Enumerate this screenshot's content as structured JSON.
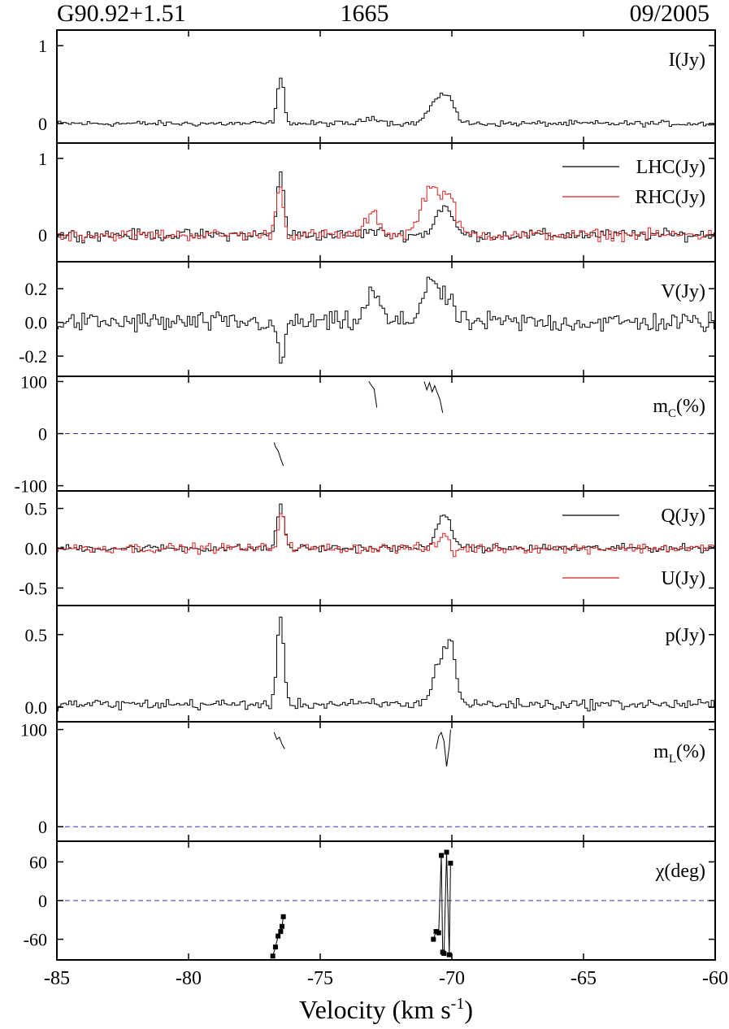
{
  "header": {
    "source": "G90.92+1.51",
    "frequency": "1665",
    "date": "09/2005"
  },
  "chart_data": {
    "type": "line",
    "step": true,
    "xlabel": "Velocity (km s",
    "xlabel_sup": "-1",
    "xlabel_close": ")",
    "xlim": [
      -85,
      -60
    ],
    "xticks": [
      -85,
      -80,
      -75,
      -70,
      -65,
      -60
    ],
    "x_tick_labels": [
      "-85",
      "-80",
      "-75",
      "-70",
      "-65",
      "-60"
    ],
    "channel_width": 0.1,
    "colors": {
      "black": "#000000",
      "red": "#d62020",
      "zero_line": "#3030b0"
    },
    "panels": [
      {
        "id": "I",
        "ylim": [
          -0.25,
          1.2
        ],
        "yticks": [
          0,
          1
        ],
        "y_tick_labels": [
          "0",
          "1"
        ],
        "label": "I(Jy)",
        "series": [
          {
            "color": "#000000",
            "noise": 0.03,
            "features": [
              {
                "v": -76.5,
                "amp": 0.58,
                "w": 0.13
              },
              {
                "v": -73.0,
                "amp": 0.08,
                "w": 0.3
              },
              {
                "v": -70.6,
                "amp": 0.28,
                "w": 0.3
              },
              {
                "v": -70.1,
                "amp": 0.3,
                "w": 0.22
              }
            ]
          }
        ]
      },
      {
        "id": "LHC_RHC",
        "ylim": [
          -0.35,
          1.2
        ],
        "yticks": [
          0,
          1
        ],
        "y_tick_labels": [
          "0",
          "1"
        ],
        "legend": [
          "LHC(Jy)",
          "RHC(Jy)"
        ],
        "series": [
          {
            "name": "LHC(Jy)",
            "color": "#000000",
            "noise": 0.06,
            "features": [
              {
                "v": -76.5,
                "amp": 0.8,
                "w": 0.13
              },
              {
                "v": -73.0,
                "amp": 0.05,
                "w": 0.3
              },
              {
                "v": -70.3,
                "amp": 0.38,
                "w": 0.3
              }
            ]
          },
          {
            "name": "RHC(Jy)",
            "color": "#d62020",
            "noise": 0.06,
            "features": [
              {
                "v": -76.55,
                "amp": 0.65,
                "w": 0.13
              },
              {
                "v": -73.0,
                "amp": 0.28,
                "w": 0.25
              },
              {
                "v": -70.8,
                "amp": 0.62,
                "w": 0.35
              },
              {
                "v": -70.1,
                "amp": 0.45,
                "w": 0.25
              }
            ]
          }
        ]
      },
      {
        "id": "V",
        "ylim": [
          -0.32,
          0.36
        ],
        "yticks": [
          -0.2,
          0.0,
          0.2
        ],
        "y_tick_labels": [
          "-0.2",
          "0.0",
          "0.2"
        ],
        "label": "V(Jy)",
        "series": [
          {
            "color": "#000000",
            "noise": 0.05,
            "features": [
              {
                "v": -76.5,
                "amp": -0.25,
                "w": 0.13
              },
              {
                "v": -73.0,
                "amp": 0.18,
                "w": 0.25
              },
              {
                "v": -70.8,
                "amp": 0.27,
                "w": 0.3
              },
              {
                "v": -70.1,
                "amp": 0.12,
                "w": 0.2
              }
            ]
          }
        ]
      },
      {
        "id": "mC",
        "ylim": [
          -110,
          110
        ],
        "yticks": [
          -100,
          0,
          100
        ],
        "y_tick_labels": [
          "-100",
          "0",
          "100"
        ],
        "label": "m",
        "label_sub": "C",
        "label_unit": "(%)",
        "zero_line": true,
        "segments": [
          [
            [
              -76.75,
              -17
            ],
            [
              -76.7,
              -25
            ],
            [
              -76.6,
              -33
            ],
            [
              -76.5,
              -48
            ],
            [
              -76.4,
              -62
            ]
          ],
          [
            [
              -73.15,
              100
            ],
            [
              -73.05,
              92
            ],
            [
              -72.95,
              85
            ],
            [
              -72.85,
              50
            ]
          ],
          [
            [
              -71.05,
              100
            ],
            [
              -70.95,
              84
            ],
            [
              -70.85,
              98
            ],
            [
              -70.75,
              80
            ],
            [
              -70.65,
              92
            ],
            [
              -70.55,
              78
            ],
            [
              -70.45,
              65
            ],
            [
              -70.35,
              40
            ]
          ]
        ]
      },
      {
        "id": "QU",
        "ylim": [
          -0.72,
          0.72
        ],
        "yticks": [
          -0.5,
          0.0,
          0.5
        ],
        "y_tick_labels": [
          "-0.5",
          "0.0",
          "0.5"
        ],
        "legend": [
          "Q(Jy)",
          "U(Jy)"
        ],
        "series": [
          {
            "name": "Q(Jy)",
            "color": "#000000",
            "noise": 0.04,
            "features": [
              {
                "v": -76.5,
                "amp": 0.55,
                "w": 0.13
              },
              {
                "v": -70.3,
                "amp": 0.38,
                "w": 0.3
              }
            ]
          },
          {
            "name": "U(Jy)",
            "color": "#d62020",
            "noise": 0.05,
            "features": [
              {
                "v": -76.45,
                "amp": 0.45,
                "w": 0.13
              },
              {
                "v": -70.2,
                "amp": 0.2,
                "w": 0.22
              },
              {
                "v": -69.95,
                "amp": -0.18,
                "w": 0.12
              }
            ]
          }
        ]
      },
      {
        "id": "p",
        "ylim": [
          -0.1,
          0.7
        ],
        "yticks": [
          0.0,
          0.5
        ],
        "y_tick_labels": [
          "0.0",
          "0.5"
        ],
        "label": "p(Jy)",
        "series": [
          {
            "color": "#000000",
            "noise": 0.03,
            "offset": 0.02,
            "features": [
              {
                "v": -76.5,
                "amp": 0.58,
                "w": 0.13
              },
              {
                "v": -70.4,
                "amp": 0.32,
                "w": 0.28
              },
              {
                "v": -70.0,
                "amp": 0.3,
                "w": 0.18
              }
            ]
          }
        ]
      },
      {
        "id": "mL",
        "ylim": [
          -15,
          108
        ],
        "yticks": [
          0,
          100
        ],
        "y_tick_labels": [
          "0",
          "100"
        ],
        "label": "m",
        "label_sub": "L",
        "label_unit": "(%)",
        "zero_line": true,
        "segments": [
          [
            [
              -76.75,
              97
            ],
            [
              -76.65,
              90
            ],
            [
              -76.55,
              92
            ],
            [
              -76.45,
              85
            ],
            [
              -76.35,
              80
            ]
          ],
          [
            [
              -70.6,
              80
            ],
            [
              -70.5,
              93
            ],
            [
              -70.4,
              97
            ],
            [
              -70.3,
              88
            ],
            [
              -70.2,
              62
            ],
            [
              -70.1,
              82
            ],
            [
              -70.05,
              100
            ]
          ]
        ]
      },
      {
        "id": "chi",
        "ylim": [
          -92,
          92
        ],
        "yticks": [
          -60,
          0,
          60
        ],
        "y_tick_labels": [
          "-60",
          "0",
          "60"
        ],
        "label": "χ(deg)",
        "zero_line": true,
        "chi_points": [
          [
            [
              -76.8,
              -86
            ],
            [
              -76.7,
              -72
            ],
            [
              -76.6,
              -55
            ],
            [
              -76.5,
              -48
            ],
            [
              -76.45,
              -40
            ],
            [
              -76.4,
              -25
            ]
          ],
          [
            [
              -70.7,
              -60
            ],
            [
              -70.6,
              -48
            ],
            [
              -70.5,
              -50
            ],
            [
              -70.4,
              70
            ],
            [
              -70.35,
              -80
            ],
            [
              -70.3,
              -82
            ],
            [
              -70.2,
              75
            ],
            [
              -70.1,
              -84
            ],
            [
              -70.05,
              58
            ]
          ]
        ]
      }
    ]
  }
}
